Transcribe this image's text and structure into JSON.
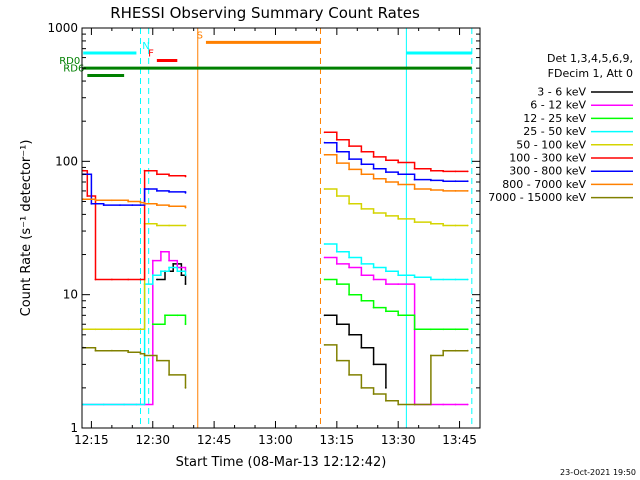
{
  "title": "RHESSI Observing Summary Count Rates",
  "footer_date": "23-Oct-2021 19:50",
  "chart_data": {
    "type": "line",
    "title": "RHESSI Observing Summary Count Rates",
    "xlabel": "Start Time (08-Mar-13 12:12:42)",
    "ylabel": "Count Rate (s⁻¹ detector⁻¹)",
    "y_scale": "log",
    "xlim": [
      "12:12:42",
      "13:50:00"
    ],
    "ylim": [
      1,
      1000
    ],
    "x_ticks": [
      "12:15",
      "12:30",
      "12:45",
      "13:00",
      "13:15",
      "13:30",
      "13:45"
    ],
    "y_ticks": [
      "1",
      "10",
      "100",
      "1000"
    ],
    "grid": false,
    "legend_position": "right",
    "legend_header": [
      "Det 1,3,4,5,6,9,",
      "FDecim 1, Att 0"
    ],
    "series": [
      {
        "name": "3 - 6 keV",
        "color": "#000000",
        "x": [
          "12:31",
          "12:33",
          "12:35",
          "12:37",
          "12:38",
          "13:12",
          "13:15",
          "13:18",
          "13:21",
          "13:24",
          "13:27"
        ],
        "values": [
          13,
          15,
          17,
          14,
          12,
          7,
          6,
          5,
          4,
          3,
          2
        ]
      },
      {
        "name": "6 - 12 keV",
        "color": "#ff00ff",
        "x": [
          "12:13",
          "12:18",
          "12:23",
          "12:26",
          "12:28",
          "12:30",
          "12:32",
          "12:34",
          "12:36",
          "12:38",
          "13:12",
          "13:15",
          "13:18",
          "13:21",
          "13:24",
          "13:27",
          "13:30",
          "13:34",
          "13:38",
          "13:41",
          "13:44",
          "13:47"
        ],
        "values": [
          1.5,
          1.5,
          1.5,
          1.5,
          1.5,
          18,
          21,
          18,
          16,
          15,
          19,
          17,
          16,
          14,
          13,
          12,
          12,
          1.5,
          1.5,
          1.5,
          1.5,
          1.5
        ]
      },
      {
        "name": "12 - 25 keV",
        "color": "#00ff00",
        "x": [
          "12:30",
          "12:33",
          "12:36",
          "12:38",
          "13:12",
          "13:15",
          "13:18",
          "13:21",
          "13:24",
          "13:27",
          "13:30",
          "13:34",
          "13:38",
          "13:41",
          "13:44",
          "13:47"
        ],
        "values": [
          6,
          7,
          7,
          6,
          13,
          12,
          10,
          9,
          8,
          7.5,
          7,
          5.5,
          5.5,
          5.5,
          5.5,
          5.5
        ]
      },
      {
        "name": "25 - 50 keV",
        "color": "#00ffff",
        "x": [
          "12:13",
          "12:18",
          "12:23",
          "12:26",
          "12:28",
          "12:30",
          "12:32",
          "12:34",
          "12:36",
          "12:38",
          "13:12",
          "13:15",
          "13:18",
          "13:21",
          "13:24",
          "13:27",
          "13:30",
          "13:34",
          "13:38",
          "13:41",
          "13:44",
          "13:47"
        ],
        "values": [
          1.5,
          1.5,
          1.5,
          1.5,
          12,
          14,
          15,
          16,
          15,
          14,
          24,
          21,
          19,
          17,
          16,
          15,
          14,
          13.5,
          13,
          13,
          13,
          13
        ]
      },
      {
        "name": "50 - 100 keV",
        "color": "#d4d400",
        "x": [
          "12:13",
          "12:16",
          "12:20",
          "12:24",
          "12:27",
          "12:28",
          "12:31",
          "12:34",
          "12:38",
          "13:12",
          "13:15",
          "13:18",
          "13:21",
          "13:24",
          "13:27",
          "13:30",
          "13:34",
          "13:38",
          "13:41",
          "13:44",
          "13:47"
        ],
        "values": [
          5.5,
          5.5,
          5.5,
          5.5,
          5.5,
          34,
          33,
          33,
          33,
          62,
          55,
          48,
          44,
          41,
          39,
          37,
          35,
          34,
          33,
          33,
          33
        ]
      },
      {
        "name": "100 - 300 keV",
        "color": "#ff0000",
        "x": [
          "12:13",
          "12:14",
          "12:16",
          "12:20",
          "12:24",
          "12:27",
          "12:28",
          "12:31",
          "12:34",
          "12:38",
          "13:12",
          "13:15",
          "13:18",
          "13:21",
          "13:24",
          "13:27",
          "13:30",
          "13:34",
          "13:38",
          "13:41",
          "13:44",
          "13:47"
        ],
        "values": [
          85,
          55,
          13,
          13,
          13,
          13,
          85,
          80,
          78,
          77,
          165,
          145,
          130,
          118,
          108,
          102,
          98,
          88,
          85,
          84,
          84,
          84
        ]
      },
      {
        "name": "300 - 800 keV",
        "color": "#0000ff",
        "x": [
          "12:13",
          "12:15",
          "12:18",
          "12:22",
          "12:25",
          "12:27",
          "12:28",
          "12:31",
          "12:34",
          "12:38",
          "13:12",
          "13:15",
          "13:18",
          "13:21",
          "13:24",
          "13:27",
          "13:30",
          "13:34",
          "13:38",
          "13:41",
          "13:44",
          "13:47"
        ],
        "values": [
          80,
          48,
          47,
          47,
          47,
          47,
          62,
          60,
          59,
          58,
          138,
          118,
          104,
          95,
          88,
          83,
          80,
          73,
          72,
          71,
          71,
          71
        ]
      },
      {
        "name": "800 - 7000 keV",
        "color": "#ff8000",
        "x": [
          "12:13",
          "12:16",
          "12:20",
          "12:24",
          "12:27",
          "12:28",
          "12:31",
          "12:34",
          "12:38",
          "13:12",
          "13:15",
          "13:18",
          "13:21",
          "13:24",
          "13:27",
          "13:30",
          "13:34",
          "13:38",
          "13:41",
          "13:44",
          "13:47"
        ],
        "values": [
          52,
          51,
          51,
          50,
          49,
          48,
          47,
          46,
          45,
          112,
          97,
          87,
          80,
          74,
          70,
          67,
          62,
          61,
          60,
          60,
          60
        ]
      },
      {
        "name": "7000 - 15000 keV",
        "color": "#808000",
        "x": [
          "12:13",
          "12:16",
          "12:20",
          "12:24",
          "12:27",
          "12:28",
          "12:31",
          "12:34",
          "12:38",
          "13:12",
          "13:15",
          "13:18",
          "13:21",
          "13:24",
          "13:27",
          "13:30",
          "13:34",
          "13:38",
          "13:41",
          "13:44",
          "13:47"
        ],
        "values": [
          4,
          3.8,
          3.8,
          3.7,
          3.6,
          3.5,
          3.2,
          2.5,
          2,
          4.2,
          3.2,
          2.5,
          2,
          1.8,
          1.6,
          1.5,
          1.5,
          3.5,
          3.8,
          3.8,
          3.8
        ]
      }
    ],
    "flag_bars": [
      {
        "label": "",
        "color": "#00ffff",
        "x_start": "12:13",
        "x_end": "12:26",
        "level": 650
      },
      {
        "label": "N",
        "color": "#00ffff",
        "x_start": "12:30",
        "x_end": "12:30",
        "level": 650
      },
      {
        "label": "F",
        "color": "#ff0000",
        "x_start": "12:31",
        "x_end": "12:36",
        "level": 570
      },
      {
        "label": "S",
        "color": "#ff8000",
        "x_start": "12:43",
        "x_end": "13:11",
        "level": 780
      },
      {
        "label": "",
        "color": "#00ffff",
        "x_start": "13:32",
        "x_end": "13:48",
        "level": 650
      },
      {
        "label": "RD0",
        "color": "#008000",
        "x_start": "12:13",
        "x_end": "13:48",
        "level": 500
      },
      {
        "label": "RD6",
        "color": "#008000",
        "x_start": "12:14",
        "x_end": "12:23",
        "level": 440
      }
    ],
    "vertical_markers": [
      {
        "x": "12:27",
        "color": "#00ffff",
        "style": "dashed"
      },
      {
        "x": "12:29",
        "color": "#00ffff",
        "style": "dashed"
      },
      {
        "x": "12:41",
        "color": "#ff8000",
        "style": "solid"
      },
      {
        "x": "13:11",
        "color": "#ff8000",
        "style": "dashed"
      },
      {
        "x": "13:32",
        "color": "#00ffff",
        "style": "solid"
      },
      {
        "x": "13:48",
        "color": "#00ffff",
        "style": "dashed"
      }
    ]
  }
}
